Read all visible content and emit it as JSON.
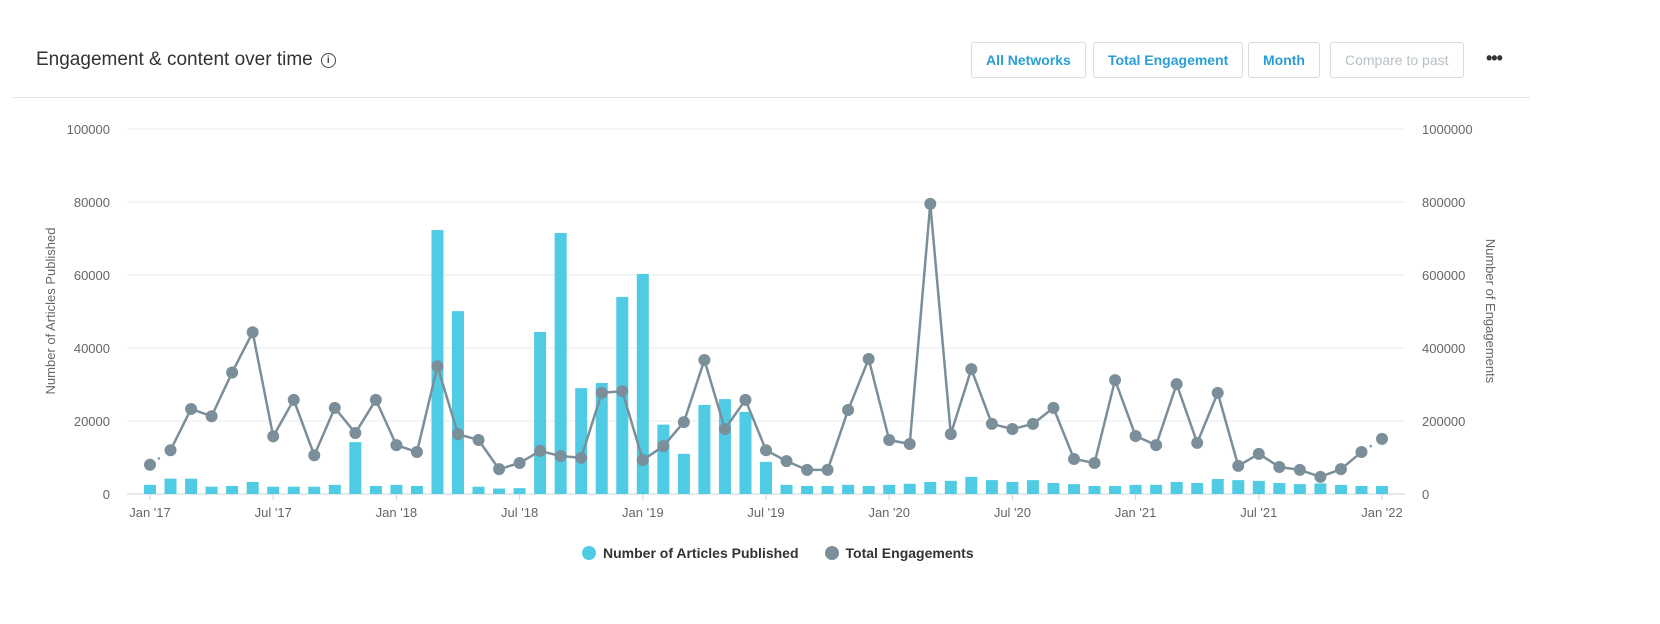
{
  "header": {
    "title": "Engagement & content over time",
    "info_icon": "info-icon",
    "buttons": [
      "All Networks",
      "Total Engagement",
      "Month",
      "Compare to past"
    ],
    "more_icon": "more-horizontal-icon"
  },
  "chart_data": {
    "type": "bar+line",
    "ylabel_left": "Number of Articles Published",
    "ylabel_right": "Number of Engagements",
    "ylim_left": [
      0,
      100000
    ],
    "ylim_right": [
      0,
      1000000
    ],
    "yticks_left": [
      "0",
      "20000",
      "40000",
      "60000",
      "80000",
      "100000"
    ],
    "yticks_right": [
      "0",
      "200000",
      "400000",
      "600000",
      "800000",
      "1000000"
    ],
    "xtick_labels": [
      "Jan '17",
      "Jul '17",
      "Jan '18",
      "Jul '18",
      "Jan '19",
      "Jul '19",
      "Jan '20",
      "Jul '20",
      "Jan '21",
      "Jul '21",
      "Jan '22"
    ],
    "grid": true,
    "legend_position": "bottom",
    "colors": {
      "articles": "#4fcbe3",
      "engagements": "#7b8f9b"
    },
    "x_start": "2017-01",
    "x_end": "2022-01",
    "series": [
      {
        "name": "Number of Articles Published",
        "axis": "left",
        "type": "bar",
        "values": [
          2500,
          4200,
          4200,
          2000,
          2200,
          3300,
          2000,
          2000,
          2000,
          2500,
          14200,
          2200,
          2500,
          2200,
          72300,
          50100,
          2000,
          1500,
          1600,
          44400,
          71500,
          29000,
          30400,
          54000,
          60300,
          19000,
          11000,
          24400,
          26000,
          22500,
          8800,
          2500,
          2200,
          2200,
          2500,
          2200,
          2500,
          2800,
          3300,
          3600,
          4700,
          3800,
          3300,
          3800,
          3000,
          2700,
          2200,
          2200,
          2500,
          2500,
          3300,
          3000,
          4100,
          3800,
          3600,
          3000,
          2700,
          2900,
          2500,
          2200,
          2200
        ]
      },
      {
        "name": "Total Engagements",
        "axis": "right",
        "type": "line",
        "values": [
          80000,
          120000,
          233000,
          213000,
          333000,
          443000,
          158000,
          258000,
          106000,
          236000,
          167000,
          258000,
          134000,
          115000,
          350000,
          164000,
          148000,
          68000,
          85000,
          118000,
          104000,
          99000,
          277000,
          282000,
          93000,
          131000,
          197000,
          367000,
          178000,
          258000,
          120000,
          90000,
          66000,
          66000,
          230000,
          370000,
          148000,
          137000,
          795000,
          164000,
          342000,
          192000,
          178000,
          192000,
          236000,
          96000,
          85000,
          312000,
          159000,
          134000,
          301000,
          140000,
          277000,
          77000,
          110000,
          74000,
          66000,
          47000,
          68000,
          115000,
          151000
        ]
      }
    ]
  }
}
